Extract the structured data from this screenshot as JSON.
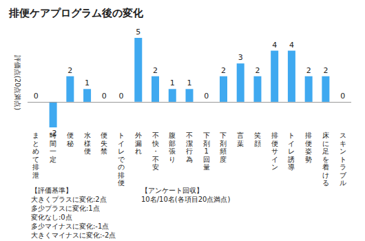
{
  "chart_data": {
    "type": "bar",
    "title": "排便ケアプログラム後の変化",
    "ylabel": "評価点(20点満点)",
    "categories": [
      "まとめて排泄",
      "時間一定",
      "便秘",
      "水様便",
      "便失禁",
      "トイレでの排便",
      "外漏れ",
      "不快・不安",
      "腹部張り",
      "不潔行為",
      "下剤1回量",
      "下剤頻度",
      "言葉",
      "笑顔",
      "排便サイン",
      "トイレ誘導",
      "排便姿勢",
      "床に足を着ける",
      "スキントラブル"
    ],
    "values": [
      0,
      -2,
      2,
      1,
      0,
      0,
      5,
      2,
      1,
      1,
      0,
      2,
      3,
      2,
      4,
      4,
      2,
      2,
      0
    ],
    "color": "#3fa9f0",
    "ylim": [
      -2,
      5
    ],
    "grid": false,
    "data_labels": true,
    "tick_labels": "x",
    "annotations": [
      {
        "title": "【評価基準】",
        "lines": [
          "大きくプラスに変化:2点",
          "多少プラスに変化:1点",
          "変化なし:0点",
          "多少マイナスに変化:-1点",
          "大きくマイナスに変化:-2点"
        ]
      },
      {
        "title": "【アンケート回収】",
        "lines": [
          "10名/10名(各項目20点満点)"
        ]
      }
    ]
  }
}
